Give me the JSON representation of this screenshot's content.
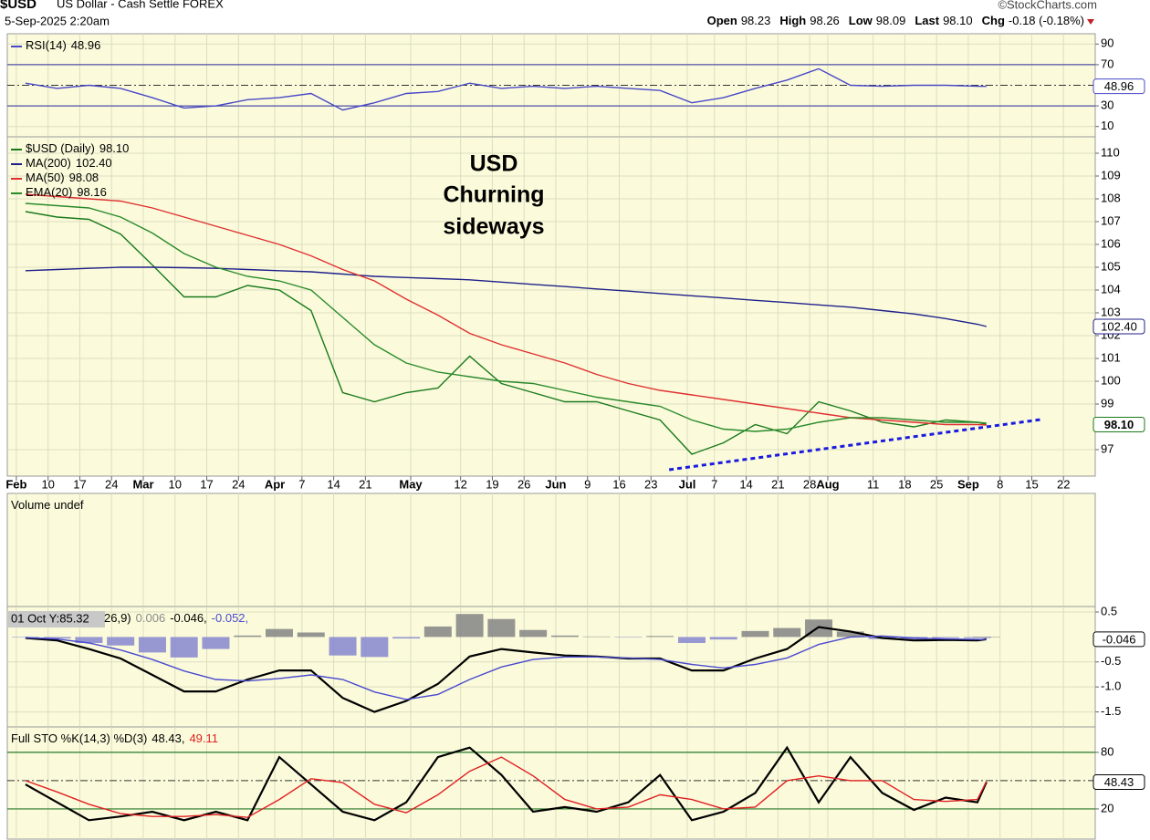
{
  "header": {
    "symbol": "$USD",
    "name": "US Dollar - Cash Settle FOREX",
    "date": "5-Sep-2025 2:20am",
    "quote": [
      {
        "label": "Open",
        "value": "98.23"
      },
      {
        "label": "High",
        "value": "98.26"
      },
      {
        "label": "Low",
        "value": "98.09"
      },
      {
        "label": "Last",
        "value": "98.10"
      },
      {
        "label": "Chg",
        "value": "-0.18 (-0.18%)"
      }
    ],
    "credit": "©StockCharts.com"
  },
  "chart_data": [
    {
      "type": "line",
      "x": [
        "2025-02-05",
        "2025-02-12",
        "2025-02-19",
        "2025-02-26",
        "2025-03-05",
        "2025-03-12",
        "2025-03-19",
        "2025-03-26",
        "2025-04-02",
        "2025-04-09",
        "2025-04-16",
        "2025-04-23",
        "2025-04-30",
        "2025-05-07",
        "2025-05-14",
        "2025-05-21",
        "2025-05-28",
        "2025-06-04",
        "2025-06-11",
        "2025-06-18",
        "2025-06-25",
        "2025-07-02",
        "2025-07-09",
        "2025-07-16",
        "2025-07-23",
        "2025-07-30",
        "2025-08-06",
        "2025-08-13",
        "2025-08-20",
        "2025-08-27",
        "2025-09-03",
        "2025-09-05"
      ],
      "xlim": [
        "2025-02-01",
        "2025-09-29"
      ],
      "ylim": [
        0,
        100
      ],
      "yticks": [
        10,
        30,
        70,
        90
      ],
      "ref_lines": [
        30,
        70
      ],
      "mid_line": 50,
      "ref_color": "#5050a8",
      "series": [
        {
          "name": "RSI(14)",
          "legend_value": "48.96",
          "badge_label": "48.96",
          "color": "#4848c8",
          "values": [
            52,
            47,
            50,
            47,
            38,
            28,
            30,
            36,
            38,
            42,
            26,
            33,
            42,
            44,
            52,
            47,
            49,
            47,
            49,
            47,
            45,
            33,
            38,
            47,
            55,
            66,
            50,
            49,
            50,
            50,
            49,
            48.96
          ]
        }
      ]
    },
    {
      "type": "line",
      "x": [
        "2025-02-05",
        "2025-02-12",
        "2025-02-19",
        "2025-02-26",
        "2025-03-05",
        "2025-03-12",
        "2025-03-19",
        "2025-03-26",
        "2025-04-02",
        "2025-04-09",
        "2025-04-16",
        "2025-04-23",
        "2025-04-30",
        "2025-05-07",
        "2025-05-14",
        "2025-05-21",
        "2025-05-28",
        "2025-06-04",
        "2025-06-11",
        "2025-06-18",
        "2025-06-25",
        "2025-07-02",
        "2025-07-09",
        "2025-07-16",
        "2025-07-23",
        "2025-07-30",
        "2025-08-06",
        "2025-08-13",
        "2025-08-20",
        "2025-08-27",
        "2025-09-03",
        "2025-09-05"
      ],
      "xlim": [
        "2025-02-01",
        "2025-09-29"
      ],
      "xticks": [
        {
          "value": "2025-02-03",
          "label": "Feb"
        },
        {
          "value": "2025-02-10",
          "label": "10"
        },
        {
          "value": "2025-02-17",
          "label": "17"
        },
        {
          "value": "2025-02-24",
          "label": "24"
        },
        {
          "value": "2025-03-03",
          "label": "Mar"
        },
        {
          "value": "2025-03-10",
          "label": "10"
        },
        {
          "value": "2025-03-17",
          "label": "17"
        },
        {
          "value": "2025-03-24",
          "label": "24"
        },
        {
          "value": "2025-04-01",
          "label": "Apr"
        },
        {
          "value": "2025-04-07",
          "label": "7"
        },
        {
          "value": "2025-04-14",
          "label": "14"
        },
        {
          "value": "2025-04-21",
          "label": "21"
        },
        {
          "value": "2025-05-01",
          "label": "May"
        },
        {
          "value": "2025-05-12",
          "label": "12"
        },
        {
          "value": "2025-05-19",
          "label": "19"
        },
        {
          "value": "2025-05-26",
          "label": "26"
        },
        {
          "value": "2025-06-02",
          "label": "Jun"
        },
        {
          "value": "2025-06-09",
          "label": "9"
        },
        {
          "value": "2025-06-16",
          "label": "16"
        },
        {
          "value": "2025-06-23",
          "label": "23"
        },
        {
          "value": "2025-07-01",
          "label": "Jul"
        },
        {
          "value": "2025-07-07",
          "label": "7"
        },
        {
          "value": "2025-07-14",
          "label": "14"
        },
        {
          "value": "2025-07-21",
          "label": "21"
        },
        {
          "value": "2025-07-28",
          "label": "28"
        },
        {
          "value": "2025-08-01",
          "label": "Aug"
        },
        {
          "value": "2025-08-11",
          "label": "11"
        },
        {
          "value": "2025-08-18",
          "label": "18"
        },
        {
          "value": "2025-08-25",
          "label": "25"
        },
        {
          "value": "2025-09-01",
          "label": "Sep"
        },
        {
          "value": "2025-09-08",
          "label": "8"
        },
        {
          "value": "2025-09-15",
          "label": "15"
        },
        {
          "value": "2025-09-22",
          "label": "22"
        }
      ],
      "ylim": [
        95.84,
        110.72
      ],
      "yticks": [
        97,
        99,
        100,
        101,
        102,
        103,
        104,
        105,
        106,
        107,
        108,
        109,
        110
      ],
      "series": [
        {
          "name": "$USD (Daily)",
          "legend_value": "98.10",
          "badge_label": "98.10",
          "color": "#1a7a1a",
          "values": [
            107.44,
            107.2,
            107.1,
            106.45,
            105.1,
            103.7,
            103.7,
            104.2,
            104.0,
            103.1,
            99.5,
            99.1,
            99.5,
            99.7,
            101.1,
            99.9,
            99.5,
            99.1,
            99.1,
            98.7,
            98.3,
            96.8,
            97.3,
            98.1,
            97.7,
            99.1,
            98.7,
            98.2,
            98.0,
            98.3,
            98.2,
            98.1
          ]
        },
        {
          "name": "MA(200)",
          "legend_value": "102.40",
          "badge_label": "102.40",
          "color": "#20208a",
          "values": [
            104.85,
            104.9,
            104.95,
            105.0,
            105.0,
            104.98,
            104.95,
            104.9,
            104.85,
            104.8,
            104.7,
            104.6,
            104.55,
            104.5,
            104.45,
            104.35,
            104.25,
            104.15,
            104.05,
            103.95,
            103.85,
            103.75,
            103.65,
            103.55,
            103.45,
            103.35,
            103.25,
            103.1,
            102.95,
            102.75,
            102.5,
            102.4
          ]
        },
        {
          "name": "MA(50)",
          "legend_value": "98.08",
          "color": "#e03030",
          "values": [
            108.2,
            108.1,
            108.0,
            107.9,
            107.6,
            107.2,
            106.8,
            106.4,
            106.0,
            105.5,
            104.9,
            104.4,
            103.6,
            102.9,
            102.1,
            101.6,
            101.2,
            100.8,
            100.3,
            99.9,
            99.6,
            99.4,
            99.2,
            99.0,
            98.8,
            98.6,
            98.4,
            98.3,
            98.2,
            98.1,
            98.1,
            98.08
          ]
        },
        {
          "name": "EMA(20)",
          "legend_value": "98.16",
          "color": "#2a8a2a",
          "values": [
            107.8,
            107.7,
            107.6,
            107.2,
            106.5,
            105.6,
            105.0,
            104.6,
            104.4,
            104.0,
            102.8,
            101.6,
            100.8,
            100.4,
            100.2,
            100.0,
            99.9,
            99.6,
            99.3,
            99.1,
            98.9,
            98.3,
            97.9,
            97.8,
            97.9,
            98.2,
            98.4,
            98.4,
            98.3,
            98.2,
            98.2,
            98.16
          ]
        }
      ],
      "trendline": {
        "x": [
          "2025-06-27",
          "2025-09-17"
        ],
        "values": [
          96.12,
          98.32
        ],
        "color": "#1a1ae0"
      },
      "annotations": [
        {
          "lines": [
            "USD"
          ],
          "color": "#1a1ae0"
        },
        {
          "lines": [
            "Churning",
            "sideways"
          ],
          "color": "#e02020"
        }
      ]
    },
    {
      "type": "bar",
      "title": "Volume undef"
    },
    {
      "type": "line",
      "tooltip": "01 Oct Y:85.32",
      "title": "26,9)",
      "x": [
        "2025-02-05",
        "2025-02-12",
        "2025-02-19",
        "2025-02-26",
        "2025-03-05",
        "2025-03-12",
        "2025-03-19",
        "2025-03-26",
        "2025-04-02",
        "2025-04-09",
        "2025-04-16",
        "2025-04-23",
        "2025-04-30",
        "2025-05-07",
        "2025-05-14",
        "2025-05-21",
        "2025-05-28",
        "2025-06-04",
        "2025-06-11",
        "2025-06-18",
        "2025-06-25",
        "2025-07-02",
        "2025-07-09",
        "2025-07-16",
        "2025-07-23",
        "2025-07-30",
        "2025-08-06",
        "2025-08-13",
        "2025-08-20",
        "2025-08-27",
        "2025-09-03",
        "2025-09-05"
      ],
      "xlim": [
        "2025-02-01",
        "2025-09-29"
      ],
      "ylim": [
        -1.8,
        0.61
      ],
      "yticks": [
        0.5,
        -0.5,
        {
          "value": -1,
          "label": "-1.0"
        },
        -1.5
      ],
      "series": [
        {
          "legend_value": "0.006",
          "style": "histogram",
          "color": "#8c8cd0",
          "positive_color": "#8a8a8a",
          "values": [
            -0.01,
            -0.03,
            -0.12,
            -0.17,
            -0.31,
            -0.41,
            -0.24,
            0.03,
            0.16,
            0.09,
            -0.37,
            -0.4,
            -0.03,
            0.21,
            0.46,
            0.36,
            0.14,
            0.03,
            0.01,
            -0.01,
            0.02,
            -0.12,
            -0.05,
            0.12,
            0.18,
            0.35,
            0.11,
            -0.04,
            -0.05,
            -0.02,
            -0.02,
            0.006
          ]
        },
        {
          "legend_value": "-0.046,",
          "badge_label": "-0.046",
          "color": "#000000",
          "width": 2.2,
          "values": [
            -0.02,
            -0.07,
            -0.24,
            -0.43,
            -0.76,
            -1.09,
            -1.09,
            -0.85,
            -0.67,
            -0.67,
            -1.22,
            -1.5,
            -1.28,
            -0.94,
            -0.39,
            -0.24,
            -0.31,
            -0.37,
            -0.39,
            -0.43,
            -0.43,
            -0.67,
            -0.67,
            -0.43,
            -0.24,
            0.2,
            0.11,
            -0.02,
            -0.07,
            -0.06,
            -0.07,
            -0.046
          ]
        },
        {
          "legend_value": "-0.052,",
          "color": "#4a4ad0",
          "values": [
            -0.01,
            -0.04,
            -0.12,
            -0.26,
            -0.45,
            -0.68,
            -0.85,
            -0.88,
            -0.83,
            -0.76,
            -0.85,
            -1.1,
            -1.25,
            -1.15,
            -0.85,
            -0.6,
            -0.45,
            -0.4,
            -0.4,
            -0.42,
            -0.45,
            -0.55,
            -0.62,
            -0.55,
            -0.42,
            -0.15,
            0.0,
            0.02,
            -0.02,
            -0.04,
            -0.05,
            -0.052
          ]
        }
      ]
    },
    {
      "type": "line",
      "title": "Full STO %K(14,3) %D(3)",
      "x": [
        "2025-02-05",
        "2025-02-12",
        "2025-02-19",
        "2025-02-26",
        "2025-03-05",
        "2025-03-12",
        "2025-03-19",
        "2025-03-26",
        "2025-04-02",
        "2025-04-09",
        "2025-04-16",
        "2025-04-23",
        "2025-04-30",
        "2025-05-07",
        "2025-05-14",
        "2025-05-21",
        "2025-05-28",
        "2025-06-04",
        "2025-06-11",
        "2025-06-18",
        "2025-06-25",
        "2025-07-02",
        "2025-07-09",
        "2025-07-16",
        "2025-07-23",
        "2025-07-30",
        "2025-08-06",
        "2025-08-13",
        "2025-08-20",
        "2025-08-27",
        "2025-09-03",
        "2025-09-05"
      ],
      "xlim": [
        "2025-02-01",
        "2025-09-29"
      ],
      "ylim": [
        -12,
        107
      ],
      "yticks": [
        20,
        80
      ],
      "ref_lines": [
        20,
        80
      ],
      "mid_line": 50,
      "ref_color": "#2a7a2a",
      "series": [
        {
          "legend_value": "48.43,",
          "badge_label": "48.43",
          "color": "#000000",
          "width": 2.2,
          "values": [
            46,
            27,
            8,
            12,
            17,
            8,
            17,
            8,
            75,
            46,
            17,
            8,
            27,
            75,
            85,
            56,
            17,
            22,
            17,
            27,
            56,
            8,
            17,
            37,
            85,
            27,
            75,
            37,
            19,
            32,
            27,
            48.43
          ]
        },
        {
          "legend_value": "49.11",
          "color": "#e02020",
          "values": [
            50,
            38,
            25,
            15,
            12,
            12,
            14,
            11,
            30,
            52,
            48,
            25,
            16,
            35,
            60,
            75,
            55,
            30,
            20,
            22,
            35,
            30,
            20,
            22,
            50,
            55,
            50,
            50,
            30,
            28,
            30,
            49.11
          ]
        }
      ]
    }
  ]
}
